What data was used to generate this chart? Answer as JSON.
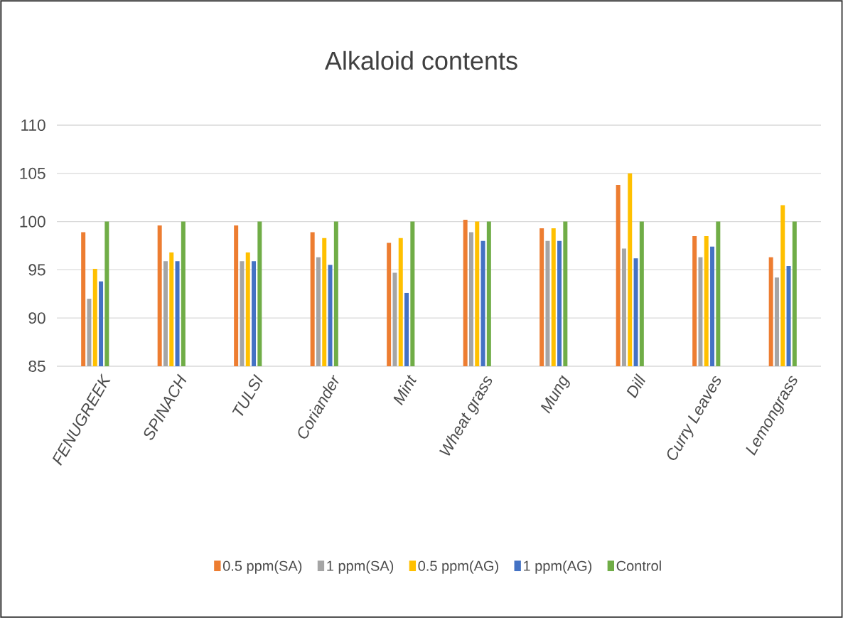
{
  "chart_data": {
    "type": "bar",
    "title": "Alkaloid contents",
    "categories": [
      "FENUGREEK",
      "SPINACH",
      "TULSI",
      "Coriander",
      "Mint",
      "Wheat grass",
      "Mung",
      "Dill",
      "Curry Leaves",
      "Lemongrass"
    ],
    "series": [
      {
        "name": "0.5 ppm(SA)",
        "color": "#ed7d31",
        "values": [
          98.9,
          99.6,
          99.6,
          98.9,
          97.8,
          100.2,
          99.3,
          103.8,
          98.5,
          96.3
        ]
      },
      {
        "name": "1 ppm(SA)",
        "color": "#a5a5a5",
        "values": [
          92.0,
          95.9,
          95.9,
          96.3,
          94.7,
          98.9,
          98.0,
          97.2,
          96.3,
          94.2
        ]
      },
      {
        "name": "0.5 ppm(AG)",
        "color": "#ffc000",
        "values": [
          95.1,
          96.8,
          96.8,
          98.3,
          98.3,
          100.0,
          99.3,
          105.0,
          98.5,
          101.7
        ]
      },
      {
        "name": "1 ppm(AG)",
        "color": "#4472c4",
        "values": [
          93.8,
          95.9,
          95.9,
          95.5,
          92.6,
          98.0,
          98.0,
          96.2,
          97.4,
          95.4
        ]
      },
      {
        "name": "Control",
        "color": "#70ad47",
        "values": [
          100,
          100,
          100,
          100,
          100,
          100,
          100,
          100,
          100,
          100
        ]
      }
    ],
    "ylim": [
      85,
      110
    ],
    "yticks": [
      85,
      90,
      95,
      100,
      105,
      110
    ],
    "grid": "y",
    "legend": "bottom"
  }
}
